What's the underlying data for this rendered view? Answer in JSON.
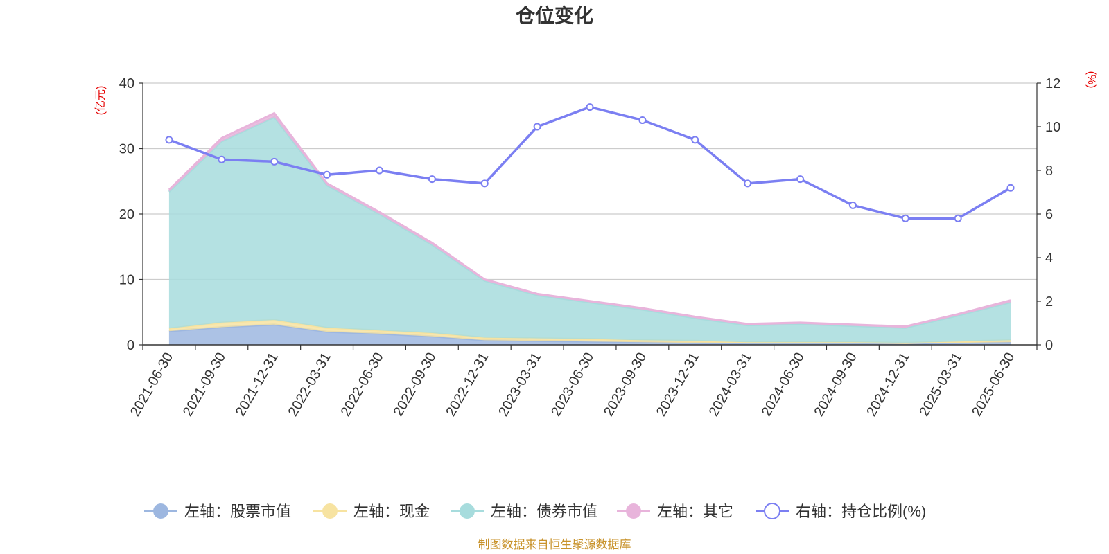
{
  "chart_data": {
    "type": "area",
    "title": "仓位变化",
    "left_axis_unit": "(亿元)",
    "right_axis_unit": "(%)",
    "categories": [
      "2021-06-30",
      "2021-09-30",
      "2021-12-31",
      "2022-03-31",
      "2022-06-30",
      "2022-09-30",
      "2022-12-31",
      "2023-03-31",
      "2023-06-30",
      "2023-09-30",
      "2023-12-31",
      "2024-03-31",
      "2024-06-30",
      "2024-09-30",
      "2024-12-31",
      "2025-03-31",
      "2025-06-30"
    ],
    "left_ylim": [
      0,
      40
    ],
    "left_ticks": [
      "0",
      "10",
      "20",
      "30",
      "40"
    ],
    "right_ylim": [
      0,
      12
    ],
    "right_ticks": [
      "0",
      "2",
      "4",
      "6",
      "8",
      "10",
      "12"
    ],
    "grid": true,
    "stacked": true,
    "legend_position": "bottom",
    "series": [
      {
        "name": "左轴：股票市值",
        "axis": "left",
        "color": "#9db7e0",
        "values": [
          2.1,
          2.7,
          3.1,
          2.0,
          1.7,
          1.3,
          0.7,
          0.6,
          0.5,
          0.4,
          0.3,
          0.2,
          0.2,
          0.2,
          0.2,
          0.3,
          0.4
        ]
      },
      {
        "name": "左轴：现金",
        "axis": "left",
        "color": "#f7e3a1",
        "values": [
          0.4,
          0.7,
          0.7,
          0.6,
          0.5,
          0.5,
          0.4,
          0.4,
          0.4,
          0.3,
          0.3,
          0.2,
          0.2,
          0.2,
          0.1,
          0.2,
          0.3
        ]
      },
      {
        "name": "左轴：债券市值",
        "axis": "left",
        "color": "#a7dcdd",
        "values": [
          20.9,
          27.7,
          31.0,
          21.8,
          17.8,
          13.5,
          8.7,
          6.6,
          5.6,
          4.7,
          3.5,
          2.6,
          2.8,
          2.5,
          2.3,
          4.0,
          5.8
        ]
      },
      {
        "name": "左轴：其它",
        "axis": "left",
        "color": "#e8b4db",
        "values": [
          0.3,
          0.5,
          0.6,
          0.3,
          0.3,
          0.3,
          0.2,
          0.2,
          0.2,
          0.2,
          0.2,
          0.2,
          0.2,
          0.2,
          0.2,
          0.2,
          0.3
        ]
      },
      {
        "name": "右轴：持仓比例(%)",
        "axis": "right",
        "color": "#7b7ff2",
        "values": [
          9.4,
          8.5,
          8.4,
          7.8,
          8.0,
          7.6,
          7.4,
          10.0,
          10.9,
          10.3,
          9.4,
          7.4,
          7.6,
          6.4,
          5.8,
          5.8,
          7.2
        ]
      }
    ]
  },
  "source_note": "制图数据来自恒生聚源数据库"
}
